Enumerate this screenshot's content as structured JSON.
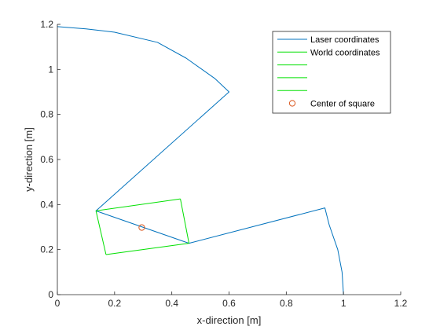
{
  "chart_data": {
    "type": "line",
    "xlabel": "x-direction [m]",
    "ylabel": "y-direction [m]",
    "xlim": [
      0,
      1.2
    ],
    "ylim": [
      0,
      1.2
    ],
    "xticks": [
      0,
      0.2,
      0.4,
      0.6,
      0.8,
      1,
      1.2
    ],
    "yticks": [
      0,
      0.2,
      0.4,
      0.6,
      0.8,
      1,
      1.2
    ],
    "xtick_labels": [
      "0",
      "0.2",
      "0.4",
      "0.6",
      "0.8",
      "1",
      "1.2"
    ],
    "ytick_labels": [
      "0",
      "0.2",
      "0.4",
      "0.6",
      "0.8",
      "1",
      "1.2"
    ],
    "grid": false,
    "legend_position": "top-right",
    "series": [
      {
        "name": "Laser coordinates",
        "color": "#0072BD",
        "kind": "line",
        "points": [
          {
            "x": 1.0,
            "y": 0.0
          },
          {
            "x": 0.995,
            "y": 0.1
          },
          {
            "x": 0.98,
            "y": 0.2
          },
          {
            "x": 0.95,
            "y": 0.31
          },
          {
            "x": 0.935,
            "y": 0.385
          },
          {
            "x": 0.46,
            "y": 0.228
          },
          {
            "x": 0.135,
            "y": 0.372
          },
          {
            "x": 0.6,
            "y": 0.9
          },
          {
            "x": 0.55,
            "y": 0.96
          },
          {
            "x": 0.45,
            "y": 1.05
          },
          {
            "x": 0.35,
            "y": 1.12
          },
          {
            "x": 0.2,
            "y": 1.165
          },
          {
            "x": 0.1,
            "y": 1.18
          },
          {
            "x": 0.0,
            "y": 1.19
          }
        ]
      },
      {
        "name": "World coordinates",
        "color": "#00E000",
        "kind": "line",
        "points": [
          {
            "x": 0.135,
            "y": 0.372
          },
          {
            "x": 0.17,
            "y": 0.178
          }
        ]
      },
      {
        "name": "",
        "color": "#00E000",
        "kind": "line",
        "points": [
          {
            "x": 0.17,
            "y": 0.178
          },
          {
            "x": 0.46,
            "y": 0.228
          }
        ]
      },
      {
        "name": "",
        "color": "#00E000",
        "kind": "line",
        "points": [
          {
            "x": 0.46,
            "y": 0.228
          },
          {
            "x": 0.43,
            "y": 0.425
          }
        ]
      },
      {
        "name": "",
        "color": "#00E000",
        "kind": "line",
        "points": [
          {
            "x": 0.43,
            "y": 0.425
          },
          {
            "x": 0.135,
            "y": 0.372
          }
        ]
      },
      {
        "name": "Center of square",
        "color": "#D95319",
        "kind": "marker",
        "points": [
          {
            "x": 0.295,
            "y": 0.298
          }
        ]
      }
    ]
  }
}
